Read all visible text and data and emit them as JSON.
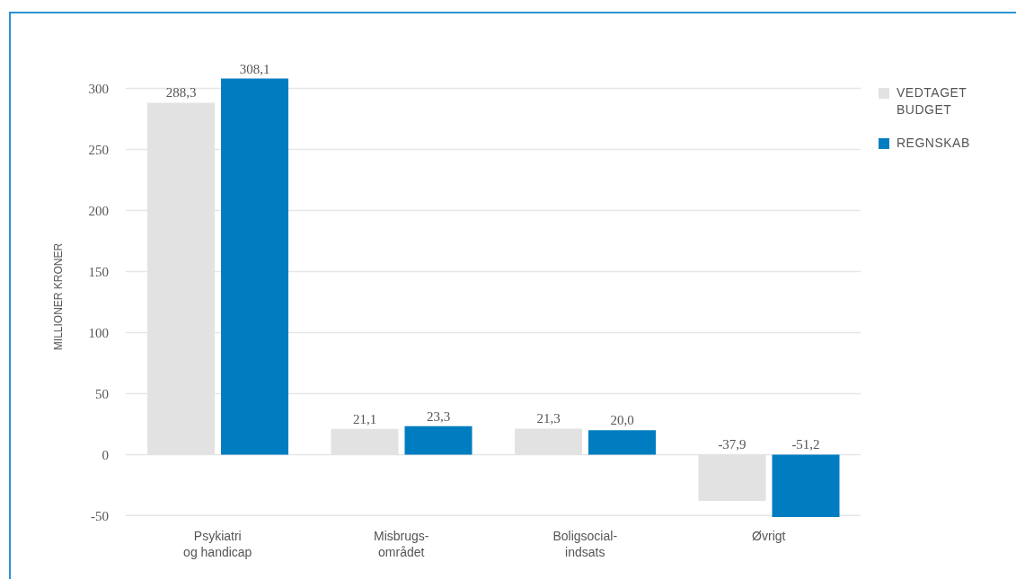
{
  "chart_data": {
    "type": "bar",
    "ylabel": "MILLIONER KRONER",
    "categories": [
      "Psykiatri\nog handicap",
      "Misbrugs-\nområdet",
      "Boligsocial-\nindsats",
      "Øvrigt"
    ],
    "series": [
      {
        "name": "VEDTAGET BUDGET",
        "color": "#e2e2e2",
        "values": [
          288.3,
          21.1,
          21.3,
          -37.9
        ],
        "value_labels": [
          "288,3",
          "21,1",
          "21,3",
          "-37,9"
        ]
      },
      {
        "name": "REGNSKAB",
        "color": "#007dc0",
        "values": [
          308.1,
          23.3,
          20.0,
          -51.2
        ],
        "value_labels": [
          "308,1",
          "23,3",
          "20,0",
          "-51,2"
        ]
      }
    ],
    "ylim": [
      -51.2,
      310
    ],
    "yticks": [
      -50,
      0,
      50,
      100,
      150,
      200,
      250,
      300
    ],
    "grid": "y",
    "legend": "right"
  }
}
